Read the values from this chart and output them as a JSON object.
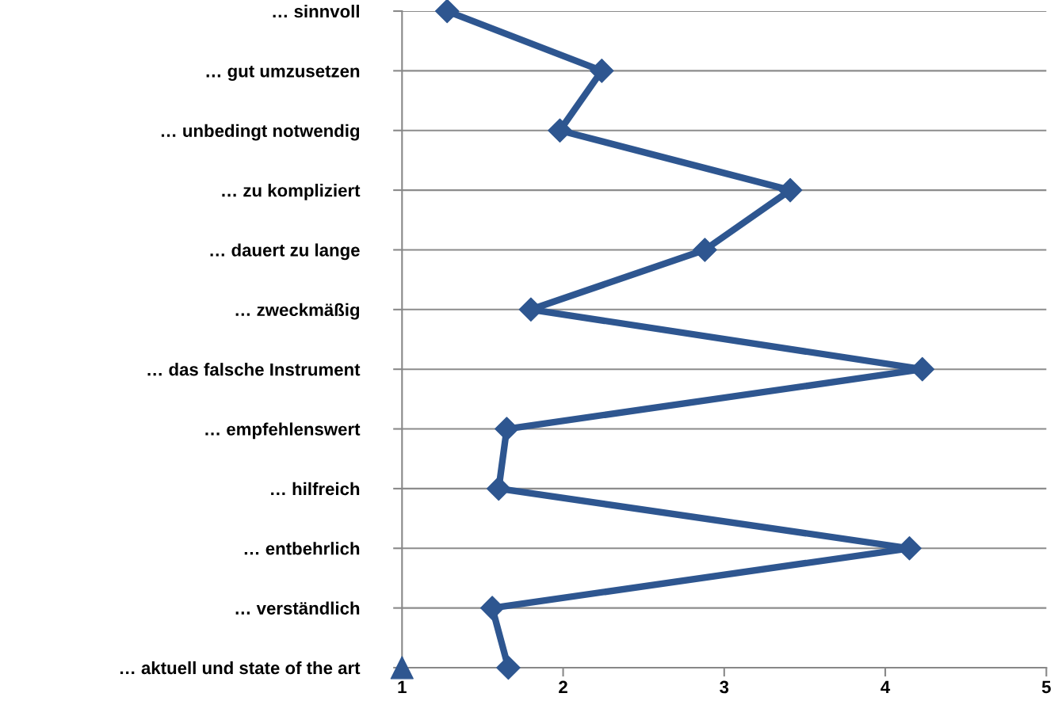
{
  "chart_data": {
    "type": "line",
    "orientation": "horizontal",
    "categories": [
      "… sinnvoll",
      "… gut umzusetzen",
      "… unbedingt notwendig",
      "… zu kompliziert",
      "… dauert zu lange",
      "… zweckmäßig",
      "… das falsche Instrument",
      "… empfehlenswert",
      "… hilfreich",
      "… entbehrlich",
      "… verständlich",
      "… aktuell und state of the art"
    ],
    "series": [
      {
        "color": "#2e5690",
        "marker": "diamond",
        "values": [
          1.28,
          2.24,
          1.98,
          3.41,
          2.88,
          1.8,
          4.23,
          1.65,
          1.6,
          4.15,
          1.56,
          1.66
        ]
      },
      {
        "color": "#2e5690",
        "type": "scatter",
        "marker": "triangle",
        "values": [
          null,
          null,
          null,
          null,
          null,
          null,
          null,
          null,
          null,
          null,
          null,
          1
        ]
      }
    ],
    "xlim": [
      1,
      5
    ],
    "xticks": [
      1,
      2,
      3,
      4,
      5
    ],
    "grid": "y"
  }
}
